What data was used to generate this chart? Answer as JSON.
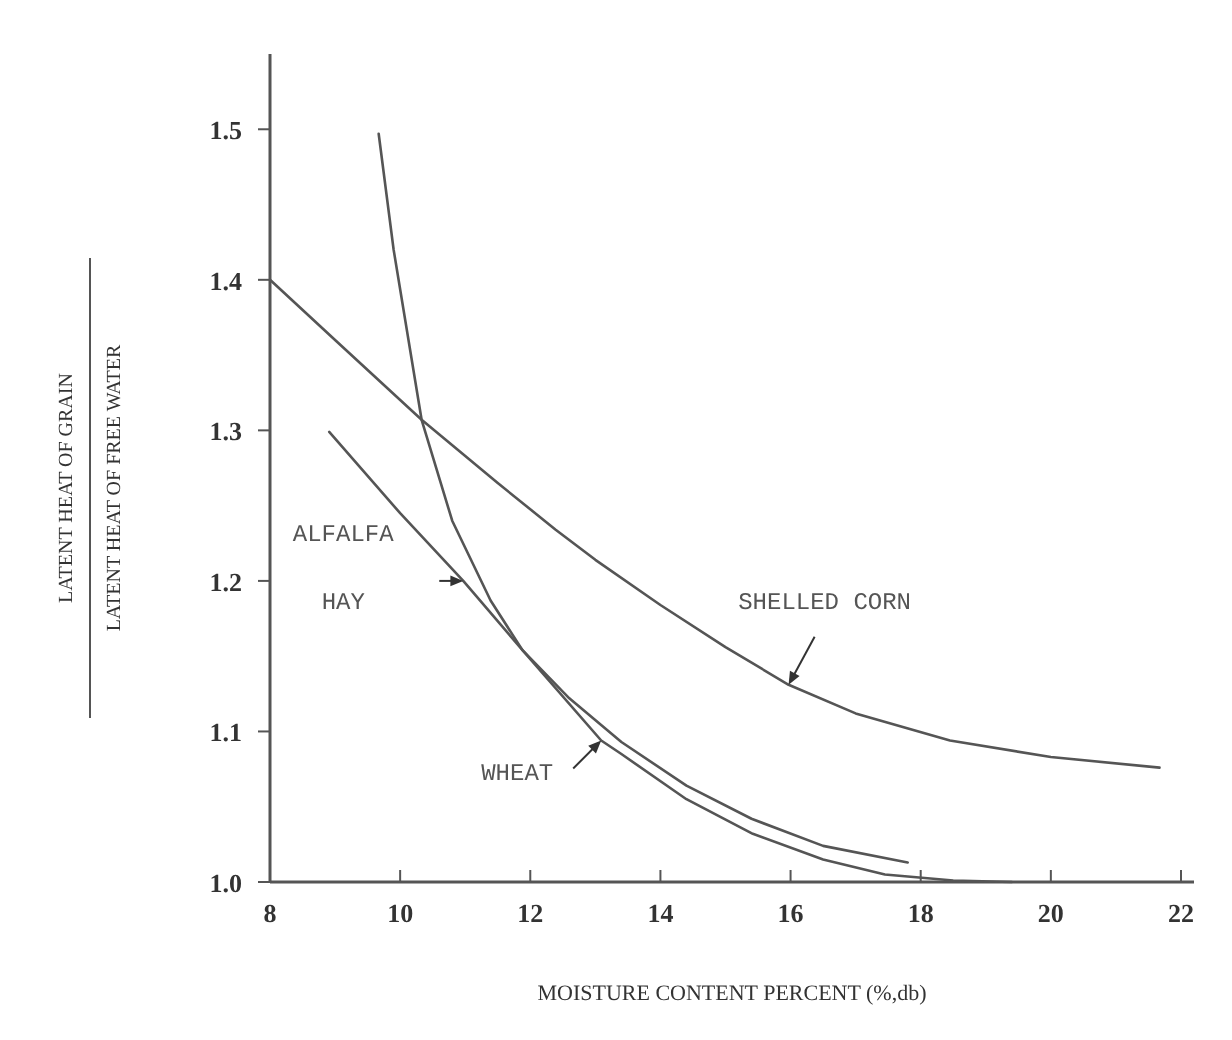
{
  "chart_data": {
    "type": "line",
    "xlabel": "MOISTURE CONTENT PERCENT (%,db)",
    "ylabel": "LATENT HEAT OF GRAIN\nLATENT HEAT OF FREE WATER",
    "xlim": [
      8,
      22.2
    ],
    "ylim": [
      1.0,
      1.55
    ],
    "xticks": [
      8,
      10,
      12,
      14,
      16,
      18,
      20,
      22
    ],
    "yticks": [
      {
        "value": 1.0,
        "label": "1.0"
      },
      1.1,
      1.2,
      1.3,
      1.4,
      1.5
    ],
    "grid": false,
    "marker": "none",
    "line_style": "solid",
    "series": [
      {
        "name": "SHELLED CORN",
        "color": "#555555",
        "x": [
          8,
          9,
          10.33,
          11.5,
          12.39,
          13,
          14,
          15,
          15.97,
          17,
          18.45,
          20,
          21.67
        ],
        "values": [
          1.4,
          1.36,
          1.307,
          1.265,
          1.234,
          1.214,
          1.184,
          1.156,
          1.131,
          1.112,
          1.094,
          1.083,
          1.076
        ]
      },
      {
        "name": "WHEAT",
        "color": "#555555",
        "x": [
          9.67,
          9.9,
          10.33,
          10.8,
          11.39,
          11.88,
          13.09,
          13.4,
          14.4,
          15.42,
          16.5,
          17.45,
          18.5,
          19.4
        ],
        "values": [
          1.497,
          1.42,
          1.307,
          1.24,
          1.187,
          1.154,
          1.094,
          1.085,
          1.055,
          1.032,
          1.015,
          1.005,
          1.001,
          1.0
        ]
      },
      {
        "name": "ALFALFA HAY",
        "color": "#555555",
        "x": [
          8.91,
          10,
          10.97,
          11.88,
          12.6,
          13.4,
          14.4,
          15.4,
          16.5,
          17.8
        ],
        "values": [
          1.299,
          1.245,
          1.2,
          1.154,
          1.122,
          1.093,
          1.064,
          1.042,
          1.024,
          1.013
        ]
      }
    ]
  }
}
